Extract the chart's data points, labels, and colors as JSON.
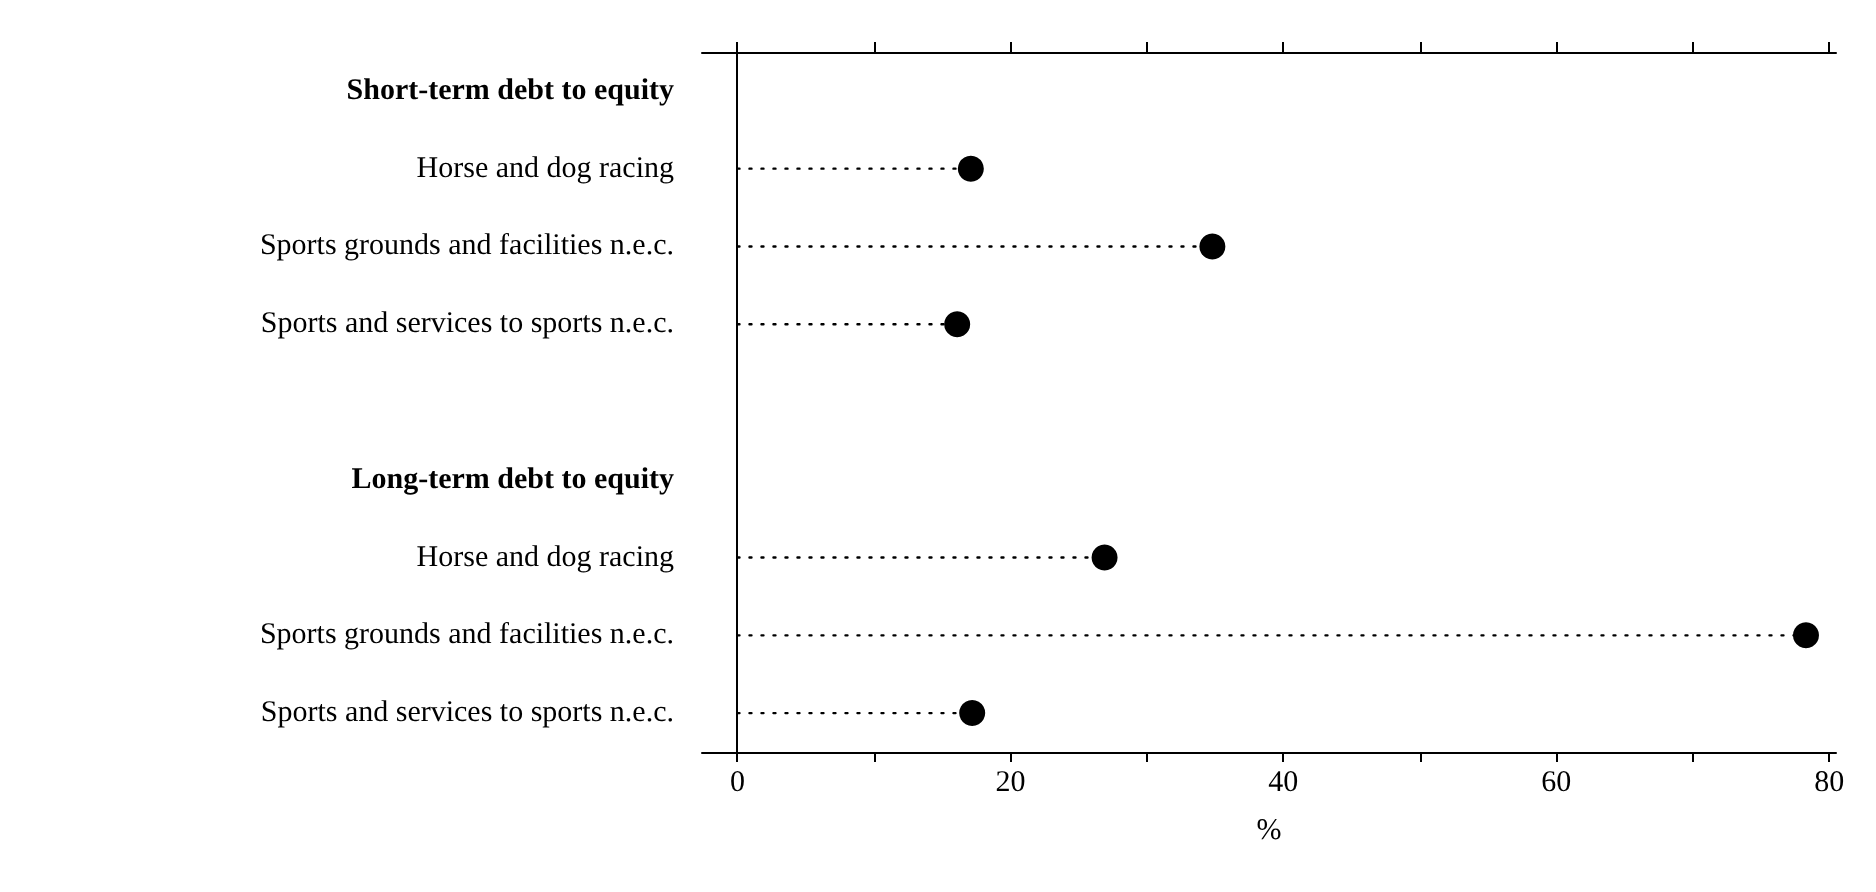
{
  "chart_data": {
    "type": "lollipop",
    "orientation": "horizontal",
    "categories": [
      "Short-term debt to equity",
      "Horse and dog racing",
      "Sports grounds and facilities n.e.c.",
      "Sports and services to sports n.e.c.",
      null,
      "Long-term debt to equity",
      "Horse and dog racing",
      "Sports grounds and facilities n.e.c.",
      "Sports and services to sports n.e.c."
    ],
    "values": [
      null,
      17.1,
      34.8,
      16.1,
      null,
      null,
      26.9,
      78.3,
      17.2
    ],
    "color": "#000000",
    "marker": "circle",
    "line_style": "dotted",
    "xlim": [
      -2.6,
      80.5
    ],
    "xticks": [
      0,
      {
        "value": 10,
        "label": null
      },
      20,
      {
        "value": 30,
        "label": null
      },
      40,
      {
        "value": 50,
        "label": null
      },
      60,
      {
        "value": 70,
        "label": null
      },
      80
    ],
    "xlabel": "%"
  }
}
